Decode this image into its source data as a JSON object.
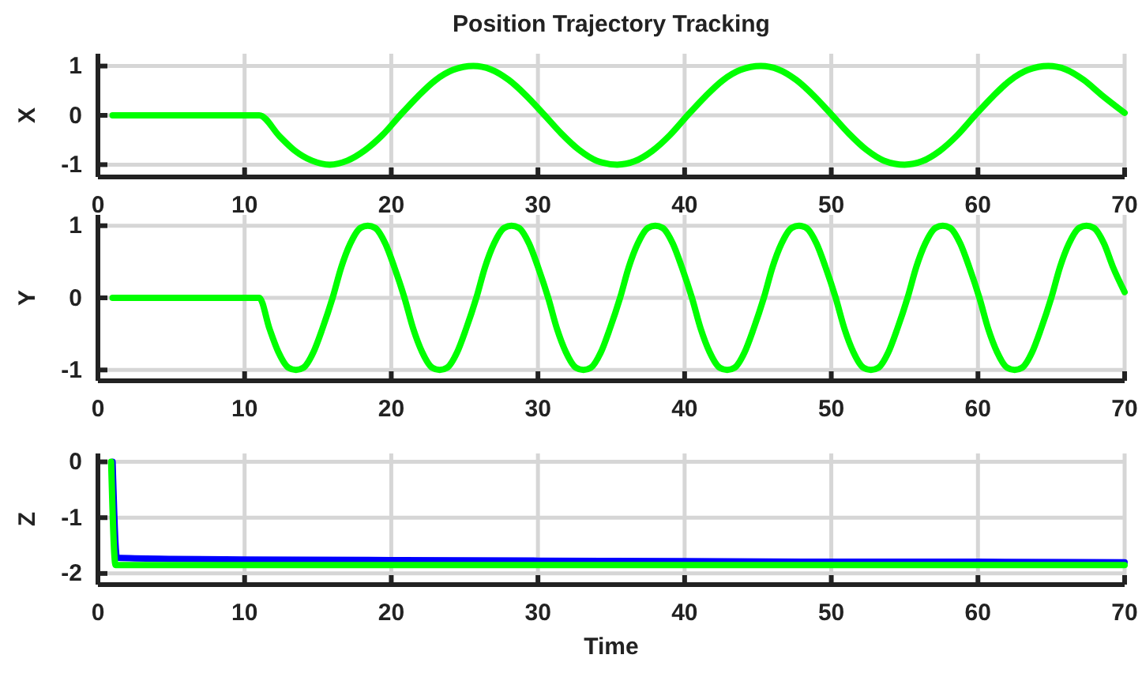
{
  "chart_data": [
    {
      "type": "line",
      "title": "Position Trajectory Tracking",
      "ylabel": "X",
      "xlim": [
        0,
        70
      ],
      "xticks": [
        0,
        10,
        20,
        30,
        40,
        50,
        60,
        70
      ],
      "ylim": [
        -1.25,
        1.25
      ],
      "yticks": [
        -1,
        0,
        1
      ],
      "grid": true,
      "line_style": "solid",
      "series": [
        {
          "color": "#00ff00",
          "x": [
            1,
            11,
            12.4,
            13.4,
            14.6,
            15.8,
            17,
            18.2,
            19.4,
            20.6,
            21.8,
            23,
            24.2,
            25.6,
            26.8,
            28,
            29.2,
            30.4,
            31.6,
            32.8,
            34,
            35.4,
            36.6,
            37.8,
            39,
            40.2,
            41.4,
            42.6,
            43.8,
            45.2,
            46.4,
            47.6,
            48.8,
            50,
            51.2,
            52.4,
            53.6,
            55,
            56.2,
            57.4,
            58.6,
            59.8,
            61,
            62.2,
            63.4,
            64.8,
            66,
            67.2,
            68.4,
            70
          ],
          "values": [
            0,
            0,
            -0.43,
            -0.71,
            -0.92,
            -1,
            -0.92,
            -0.71,
            -0.4,
            0,
            0.38,
            0.71,
            0.92,
            1,
            0.93,
            0.72,
            0.4,
            0.02,
            -0.37,
            -0.7,
            -0.92,
            -1,
            -0.93,
            -0.72,
            -0.4,
            0,
            0.38,
            0.71,
            0.92,
            1,
            0.93,
            0.72,
            0.4,
            0.02,
            -0.37,
            -0.7,
            -0.92,
            -1,
            -0.93,
            -0.72,
            -0.4,
            0,
            0.38,
            0.71,
            0.92,
            1,
            0.93,
            0.72,
            0.42,
            0.05
          ]
        }
      ]
    },
    {
      "type": "line",
      "ylabel": "Y",
      "xlim": [
        0,
        70
      ],
      "xticks": [
        0,
        10,
        20,
        30,
        40,
        50,
        60,
        70
      ],
      "ylim": [
        -1.15,
        1.15
      ],
      "yticks": [
        -1,
        0,
        1
      ],
      "grid": true,
      "line_style": "solid",
      "series": [
        {
          "color": "#00ff00",
          "x": [
            1,
            11,
            11.7,
            12.3,
            13,
            13.5,
            14,
            14.7,
            15.3,
            16,
            16.6,
            17.2,
            17.9,
            18.4,
            18.9,
            19.6,
            20.2,
            20.9,
            21.5,
            22.1,
            22.8,
            23.3,
            23.8,
            24.5,
            25.1,
            25.8,
            26.4,
            27,
            27.7,
            28.2,
            28.7,
            29.4,
            30,
            30.7,
            31.3,
            31.9,
            32.6,
            33.1,
            33.6,
            34.3,
            34.9,
            35.6,
            36.2,
            36.8,
            37.5,
            38,
            38.5,
            39.2,
            39.8,
            40.5,
            41.1,
            41.7,
            42.4,
            42.9,
            43.4,
            44.1,
            44.7,
            45.4,
            46,
            46.6,
            47.3,
            47.8,
            48.3,
            49,
            49.6,
            50.3,
            50.9,
            51.5,
            52.2,
            52.7,
            53.2,
            53.9,
            54.5,
            55.2,
            55.8,
            56.4,
            57.1,
            57.6,
            58.1,
            58.8,
            59.4,
            60.1,
            60.7,
            61.3,
            62,
            62.5,
            63,
            63.7,
            64.3,
            65,
            65.6,
            66.2,
            66.9,
            67.4,
            67.9,
            68.6,
            69.2,
            70
          ],
          "values": [
            0,
            0,
            -0.43,
            -0.75,
            -0.97,
            -1,
            -0.97,
            -0.75,
            -0.43,
            0,
            0.43,
            0.75,
            0.97,
            1,
            0.97,
            0.75,
            0.43,
            0,
            -0.43,
            -0.75,
            -0.97,
            -1,
            -0.97,
            -0.75,
            -0.43,
            0,
            0.43,
            0.75,
            0.97,
            1,
            0.97,
            0.75,
            0.43,
            0,
            -0.43,
            -0.75,
            -0.97,
            -1,
            -0.97,
            -0.75,
            -0.43,
            0,
            0.43,
            0.75,
            0.97,
            1,
            0.97,
            0.75,
            0.43,
            0,
            -0.43,
            -0.75,
            -0.97,
            -1,
            -0.97,
            -0.75,
            -0.43,
            0,
            0.43,
            0.75,
            0.97,
            1,
            0.97,
            0.75,
            0.43,
            0,
            -0.43,
            -0.75,
            -0.97,
            -1,
            -0.97,
            -0.75,
            -0.43,
            0,
            0.43,
            0.75,
            0.97,
            1,
            0.97,
            0.75,
            0.43,
            0,
            -0.43,
            -0.75,
            -0.97,
            -1,
            -0.97,
            -0.75,
            -0.43,
            0,
            0.43,
            0.75,
            0.97,
            1,
            0.97,
            0.75,
            0.43,
            0.08
          ]
        }
      ]
    },
    {
      "type": "line",
      "xlabel": "Time",
      "ylabel": "Z",
      "xlim": [
        0,
        70
      ],
      "xticks": [
        0,
        10,
        20,
        30,
        40,
        50,
        60,
        70
      ],
      "ylim": [
        -2.2,
        0.15
      ],
      "yticks": [
        -2,
        -1,
        0
      ],
      "grid": true,
      "line_style": "solid",
      "series": [
        {
          "color": "#0000ff",
          "x": [
            1,
            1.3,
            5,
            10,
            20,
            30,
            40,
            50,
            60,
            70
          ],
          "values": [
            0,
            -1.72,
            -1.74,
            -1.75,
            -1.76,
            -1.77,
            -1.78,
            -1.79,
            -1.79,
            -1.8
          ]
        },
        {
          "color": "#00ff00",
          "x": [
            0.9,
            1.2,
            70
          ],
          "values": [
            0,
            -1.85,
            -1.85
          ]
        }
      ]
    }
  ]
}
